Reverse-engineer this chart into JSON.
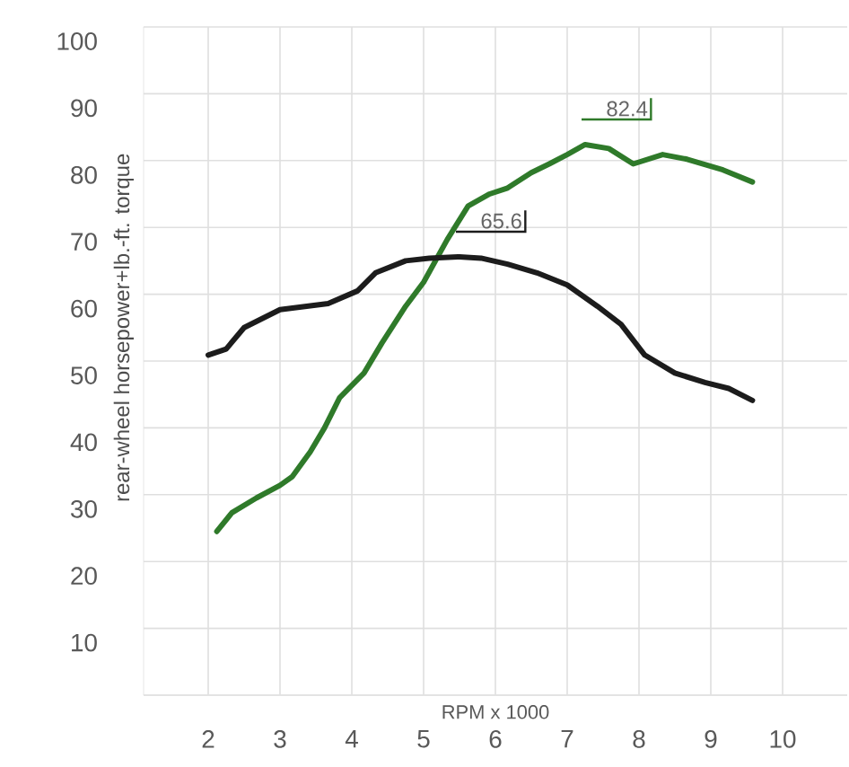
{
  "chart_data": {
    "type": "line",
    "xlabel": "RPM x 1000",
    "ylabel": "rear-wheel horsepower+lb.-ft. torque",
    "xlim": [
      1.1,
      10.9
    ],
    "ylim": [
      0,
      100
    ],
    "xticks": [
      2,
      3,
      4,
      5,
      6,
      7,
      8,
      9,
      10
    ],
    "yticks": [
      {
        "value": 0,
        "label": null
      },
      10,
      20,
      30,
      40,
      50,
      60,
      70,
      80,
      90,
      100
    ],
    "grid": true,
    "series": [
      {
        "color": "#2f7a2a",
        "x": [
          2.12,
          2.33,
          2.67,
          3.0,
          3.17,
          3.42,
          3.62,
          3.83,
          4.17,
          4.42,
          4.75,
          5.0,
          5.33,
          5.62,
          5.92,
          6.17,
          6.5,
          6.75,
          7.0,
          7.25,
          7.58,
          7.92,
          8.33,
          8.67,
          9.17,
          9.58
        ],
        "values": [
          24.5,
          27.3,
          29.5,
          31.4,
          32.7,
          36.4,
          40,
          44.5,
          48.2,
          52.7,
          58.2,
          61.8,
          68.2,
          73.2,
          75,
          75.9,
          78.2,
          79.5,
          80.9,
          82.4,
          81.8,
          79.5,
          80.9,
          80.2,
          78.6,
          76.8
        ]
      },
      {
        "color": "#1c1c1c",
        "x": [
          2.0,
          2.25,
          2.5,
          3.0,
          3.67,
          4.08,
          4.33,
          4.75,
          5.08,
          5.5,
          5.8,
          6.17,
          6.58,
          7.0,
          7.42,
          7.75,
          8.08,
          8.5,
          8.92,
          9.25,
          9.58
        ],
        "values": [
          50.9,
          51.8,
          55,
          57.7,
          58.6,
          60.5,
          63.2,
          65,
          65.4,
          65.6,
          65.4,
          64.5,
          63.2,
          61.4,
          58.2,
          55.5,
          50.9,
          48.2,
          46.8,
          45.9,
          44.1
        ]
      }
    ],
    "annotations": [
      {
        "text": "82.4",
        "x": 7.25,
        "y": 82.4
      },
      {
        "text": "65.6",
        "x": 5.5,
        "y": 65.6
      }
    ]
  }
}
